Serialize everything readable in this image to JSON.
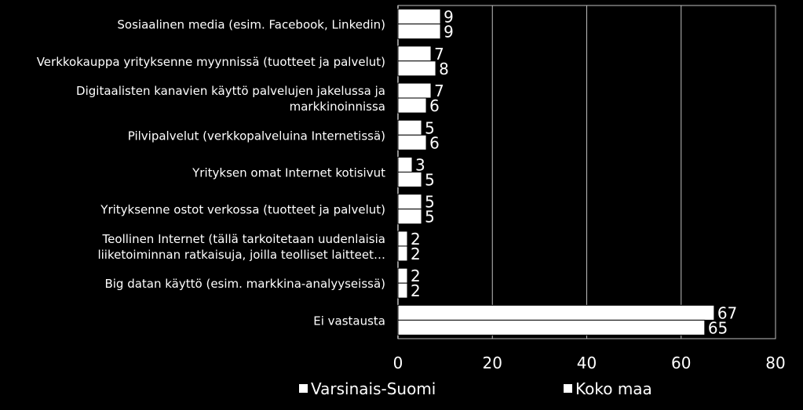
{
  "colors": {
    "background": "#000000",
    "bar": "#ffffff",
    "bar_stroke": "#000000",
    "text": "#ffffff",
    "grid": "#bfbfbf"
  },
  "chart_data": {
    "type": "bar",
    "orientation": "horizontal",
    "categories": [
      [
        "Sosiaalinen media (esim. Facebook, Linkedin)"
      ],
      [
        "Verkkokauppa yrityksenne myynnissä (tuotteet ja palvelut)"
      ],
      [
        "Digitaalisten kanavien käyttö palvelujen jakelussa ja",
        "markkinoinnissa"
      ],
      [
        "Pilvipalvelut  (verkkopalveluina Internetissä)"
      ],
      [
        "Yrityksen omat Internet kotisivut"
      ],
      [
        "Yrityksenne ostot verkossa (tuotteet ja palvelut)"
      ],
      [
        "Teollinen Internet (tällä tarkoitetaan uudenlaisia",
        "liiketoiminnan ratkaisuja, joilla teolliset laitteet…"
      ],
      [
        "Big datan käyttö (esim. markkina-analyyseissä)"
      ],
      [
        "Ei vastausta"
      ]
    ],
    "series": [
      {
        "name": "Varsinais-Suomi",
        "values": [
          9,
          7,
          7,
          5,
          3,
          5,
          2,
          2,
          67
        ]
      },
      {
        "name": "Koko maa",
        "values": [
          9,
          8,
          6,
          6,
          5,
          5,
          2,
          2,
          65
        ]
      }
    ],
    "xlim": [
      0,
      80
    ],
    "xticks": [
      0,
      20,
      40,
      60,
      80
    ],
    "grid": "vertical",
    "legend_position": "bottom"
  }
}
